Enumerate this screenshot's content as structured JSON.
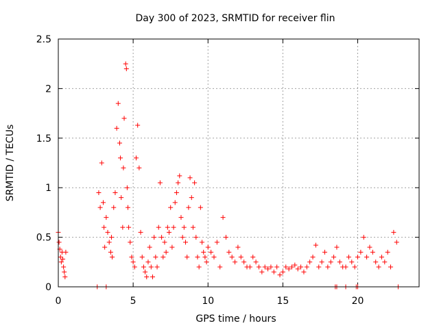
{
  "chart_data": {
    "type": "scatter",
    "title": "Day 300 of 2023, SRMTID for receiver flin",
    "xlabel": "GPS time / hours",
    "ylabel": "SRMTID / TECUs",
    "xlim": [
      0,
      24.1
    ],
    "ylim": [
      0,
      2.5
    ],
    "x_ticks": [
      0,
      5,
      10,
      15,
      20
    ],
    "x_tick_labels": [
      "0",
      "5",
      "10",
      "15",
      "20"
    ],
    "y_ticks": [
      0,
      0.5,
      1,
      1.5,
      2,
      2.5
    ],
    "y_tick_labels": [
      "0",
      "0.5",
      "1",
      "1.5",
      "2",
      "2.5"
    ],
    "grid": true,
    "marker": "+",
    "series": [
      {
        "name": "SRMTID",
        "color": "#ff0000",
        "x": [
          0.0,
          0.05,
          0.1,
          0.15,
          0.2,
          0.25,
          0.3,
          0.35,
          0.4,
          0.45,
          0.5,
          2.7,
          2.8,
          2.9,
          3.0,
          3.05,
          3.1,
          3.2,
          3.3,
          3.4,
          3.5,
          3.55,
          3.6,
          3.7,
          3.8,
          3.9,
          4.0,
          4.1,
          4.15,
          4.2,
          4.3,
          4.35,
          4.4,
          4.5,
          4.55,
          4.6,
          4.65,
          4.7,
          4.8,
          4.9,
          5.0,
          5.1,
          5.2,
          5.3,
          5.4,
          5.5,
          5.6,
          5.7,
          5.8,
          5.9,
          6.0,
          6.1,
          6.2,
          6.3,
          6.4,
          6.5,
          6.6,
          6.7,
          6.8,
          6.9,
          7.0,
          7.1,
          7.2,
          7.3,
          7.4,
          7.5,
          7.6,
          7.7,
          7.8,
          7.9,
          8.0,
          8.1,
          8.2,
          8.3,
          8.4,
          8.5,
          8.6,
          8.7,
          8.8,
          8.9,
          9.0,
          9.1,
          9.2,
          9.3,
          9.4,
          9.5,
          9.6,
          9.7,
          9.8,
          9.9,
          10.0,
          10.2,
          10.4,
          10.6,
          10.8,
          11.0,
          11.2,
          11.4,
          11.6,
          11.8,
          12.0,
          12.2,
          12.4,
          12.6,
          12.8,
          13.0,
          13.2,
          13.4,
          13.6,
          13.8,
          14.0,
          14.2,
          14.4,
          14.6,
          14.8,
          15.0,
          15.2,
          15.4,
          15.6,
          15.8,
          16.0,
          16.2,
          16.4,
          16.6,
          16.8,
          17.0,
          17.2,
          17.4,
          17.6,
          17.8,
          18.0,
          18.2,
          18.4,
          18.6,
          18.8,
          19.0,
          19.2,
          19.4,
          19.6,
          19.8,
          20.0,
          20.2,
          20.4,
          20.6,
          20.8,
          21.0,
          21.2,
          21.4,
          21.6,
          21.8,
          22.0,
          22.2,
          22.4,
          22.6,
          2.6,
          3.2,
          18.5,
          18.6,
          19.2,
          19.9,
          20.0,
          22.7
        ],
        "y": [
          0.55,
          0.45,
          0.38,
          0.3,
          0.25,
          0.35,
          0.28,
          0.2,
          0.15,
          0.1,
          0.35,
          0.95,
          0.8,
          1.25,
          0.85,
          0.6,
          0.4,
          0.7,
          0.55,
          0.45,
          0.35,
          0.5,
          0.3,
          0.8,
          0.95,
          1.6,
          1.85,
          1.45,
          1.3,
          0.9,
          0.6,
          1.2,
          1.7,
          2.25,
          2.2,
          1.0,
          0.8,
          0.6,
          0.45,
          0.3,
          0.25,
          0.2,
          1.3,
          1.63,
          1.2,
          0.55,
          0.3,
          0.2,
          0.15,
          0.1,
          0.25,
          0.4,
          0.2,
          0.1,
          0.5,
          0.3,
          0.2,
          0.6,
          1.05,
          0.5,
          0.3,
          0.45,
          0.35,
          0.6,
          0.55,
          0.8,
          0.4,
          0.6,
          0.85,
          0.95,
          1.05,
          1.12,
          0.7,
          0.5,
          0.6,
          0.45,
          0.3,
          0.8,
          1.1,
          0.9,
          0.6,
          1.05,
          0.5,
          0.3,
          0.2,
          0.8,
          0.45,
          0.35,
          0.3,
          0.25,
          0.4,
          0.35,
          0.3,
          0.45,
          0.2,
          0.7,
          0.5,
          0.35,
          0.3,
          0.25,
          0.4,
          0.3,
          0.25,
          0.2,
          0.2,
          0.3,
          0.25,
          0.2,
          0.15,
          0.2,
          0.18,
          0.2,
          0.15,
          0.2,
          0.12,
          0.15,
          0.2,
          0.18,
          0.2,
          0.22,
          0.18,
          0.2,
          0.15,
          0.2,
          0.25,
          0.3,
          0.42,
          0.2,
          0.25,
          0.35,
          0.2,
          0.25,
          0.3,
          0.4,
          0.25,
          0.2,
          0.2,
          0.3,
          0.25,
          0.2,
          0.3,
          0.35,
          0.5,
          0.3,
          0.4,
          0.35,
          0.25,
          0.2,
          0.3,
          0.25,
          0.35,
          0.2,
          0.55,
          0.45,
          0,
          0,
          0,
          0,
          0,
          0,
          0,
          0
        ]
      }
    ]
  }
}
